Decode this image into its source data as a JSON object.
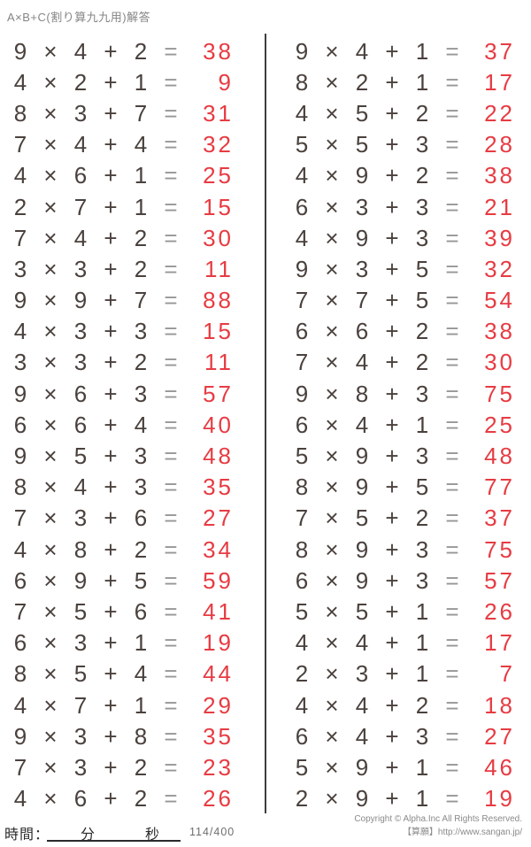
{
  "title": "A×B+C(割り算九九用)解答",
  "symbols": {
    "times": "×",
    "plus": "+",
    "equals": "="
  },
  "columns": {
    "left": [
      {
        "a": "9",
        "b": "4",
        "c": "2",
        "ans": "38"
      },
      {
        "a": "4",
        "b": "2",
        "c": "1",
        "ans": "9"
      },
      {
        "a": "8",
        "b": "3",
        "c": "7",
        "ans": "31"
      },
      {
        "a": "7",
        "b": "4",
        "c": "4",
        "ans": "32"
      },
      {
        "a": "4",
        "b": "6",
        "c": "1",
        "ans": "25"
      },
      {
        "a": "2",
        "b": "7",
        "c": "1",
        "ans": "15"
      },
      {
        "a": "7",
        "b": "4",
        "c": "2",
        "ans": "30"
      },
      {
        "a": "3",
        "b": "3",
        "c": "2",
        "ans": "11"
      },
      {
        "a": "9",
        "b": "9",
        "c": "7",
        "ans": "88"
      },
      {
        "a": "4",
        "b": "3",
        "c": "3",
        "ans": "15"
      },
      {
        "a": "3",
        "b": "3",
        "c": "2",
        "ans": "11"
      },
      {
        "a": "9",
        "b": "6",
        "c": "3",
        "ans": "57"
      },
      {
        "a": "6",
        "b": "6",
        "c": "4",
        "ans": "40"
      },
      {
        "a": "9",
        "b": "5",
        "c": "3",
        "ans": "48"
      },
      {
        "a": "8",
        "b": "4",
        "c": "3",
        "ans": "35"
      },
      {
        "a": "7",
        "b": "3",
        "c": "6",
        "ans": "27"
      },
      {
        "a": "4",
        "b": "8",
        "c": "2",
        "ans": "34"
      },
      {
        "a": "6",
        "b": "9",
        "c": "5",
        "ans": "59"
      },
      {
        "a": "7",
        "b": "5",
        "c": "6",
        "ans": "41"
      },
      {
        "a": "6",
        "b": "3",
        "c": "1",
        "ans": "19"
      },
      {
        "a": "8",
        "b": "5",
        "c": "4",
        "ans": "44"
      },
      {
        "a": "4",
        "b": "7",
        "c": "1",
        "ans": "29"
      },
      {
        "a": "9",
        "b": "3",
        "c": "8",
        "ans": "35"
      },
      {
        "a": "7",
        "b": "3",
        "c": "2",
        "ans": "23"
      },
      {
        "a": "4",
        "b": "6",
        "c": "2",
        "ans": "26"
      }
    ],
    "right": [
      {
        "a": "9",
        "b": "4",
        "c": "1",
        "ans": "37"
      },
      {
        "a": "8",
        "b": "2",
        "c": "1",
        "ans": "17"
      },
      {
        "a": "4",
        "b": "5",
        "c": "2",
        "ans": "22"
      },
      {
        "a": "5",
        "b": "5",
        "c": "3",
        "ans": "28"
      },
      {
        "a": "4",
        "b": "9",
        "c": "2",
        "ans": "38"
      },
      {
        "a": "6",
        "b": "3",
        "c": "3",
        "ans": "21"
      },
      {
        "a": "4",
        "b": "9",
        "c": "3",
        "ans": "39"
      },
      {
        "a": "9",
        "b": "3",
        "c": "5",
        "ans": "32"
      },
      {
        "a": "7",
        "b": "7",
        "c": "5",
        "ans": "54"
      },
      {
        "a": "6",
        "b": "6",
        "c": "2",
        "ans": "38"
      },
      {
        "a": "7",
        "b": "4",
        "c": "2",
        "ans": "30"
      },
      {
        "a": "9",
        "b": "8",
        "c": "3",
        "ans": "75"
      },
      {
        "a": "6",
        "b": "4",
        "c": "1",
        "ans": "25"
      },
      {
        "a": "5",
        "b": "9",
        "c": "3",
        "ans": "48"
      },
      {
        "a": "8",
        "b": "9",
        "c": "5",
        "ans": "77"
      },
      {
        "a": "7",
        "b": "5",
        "c": "2",
        "ans": "37"
      },
      {
        "a": "8",
        "b": "9",
        "c": "3",
        "ans": "75"
      },
      {
        "a": "6",
        "b": "9",
        "c": "3",
        "ans": "57"
      },
      {
        "a": "5",
        "b": "5",
        "c": "1",
        "ans": "26"
      },
      {
        "a": "4",
        "b": "4",
        "c": "1",
        "ans": "17"
      },
      {
        "a": "2",
        "b": "3",
        "c": "1",
        "ans": "7"
      },
      {
        "a": "4",
        "b": "4",
        "c": "2",
        "ans": "18"
      },
      {
        "a": "6",
        "b": "4",
        "c": "3",
        "ans": "27"
      },
      {
        "a": "5",
        "b": "9",
        "c": "1",
        "ans": "46"
      },
      {
        "a": "2",
        "b": "9",
        "c": "1",
        "ans": "19"
      }
    ]
  },
  "footer": {
    "time_label": "時間：",
    "minutes_label": "分",
    "seconds_label": "秒",
    "page_number": "114/400",
    "copyright_line1": "Copyright © Alpha.Inc All Rights Reserved.",
    "copyright_line2": "【算願】http://www.sangan.jp/"
  },
  "colors": {
    "answer": "#e73b42",
    "ink": "#4a413d",
    "equals": "#979797",
    "divider": "#3d3d3d"
  }
}
